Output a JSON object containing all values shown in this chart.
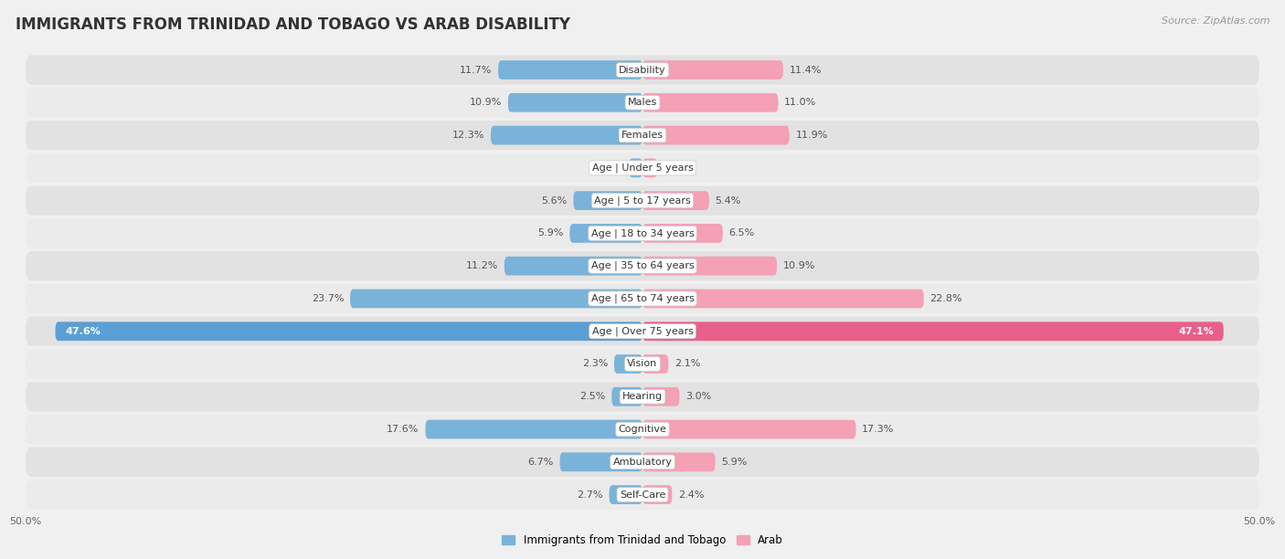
{
  "title": "IMMIGRANTS FROM TRINIDAD AND TOBAGO VS ARAB DISABILITY",
  "source": "Source: ZipAtlas.com",
  "categories": [
    "Disability",
    "Males",
    "Females",
    "Age | Under 5 years",
    "Age | 5 to 17 years",
    "Age | 18 to 34 years",
    "Age | 35 to 64 years",
    "Age | 65 to 74 years",
    "Age | Over 75 years",
    "Vision",
    "Hearing",
    "Cognitive",
    "Ambulatory",
    "Self-Care"
  ],
  "left_values": [
    11.7,
    10.9,
    12.3,
    1.1,
    5.6,
    5.9,
    11.2,
    23.7,
    47.6,
    2.3,
    2.5,
    17.6,
    6.7,
    2.7
  ],
  "right_values": [
    11.4,
    11.0,
    11.9,
    1.2,
    5.4,
    6.5,
    10.9,
    22.8,
    47.1,
    2.1,
    3.0,
    17.3,
    5.9,
    2.4
  ],
  "left_color": "#7ab3d9",
  "right_color": "#f4a0b5",
  "left_color_highlight": "#5a9fd4",
  "right_color_highlight": "#e8608a",
  "left_label": "Immigrants from Trinidad and Tobago",
  "right_label": "Arab",
  "bg_color": "#f0f0f0",
  "row_color_light": "#e8e8e8",
  "row_color_dark": "#d8d8d8",
  "axis_limit": 50.0,
  "bar_height": 0.58,
  "title_fontsize": 12,
  "label_fontsize": 8.5,
  "value_fontsize": 8,
  "tick_fontsize": 8,
  "source_fontsize": 8
}
